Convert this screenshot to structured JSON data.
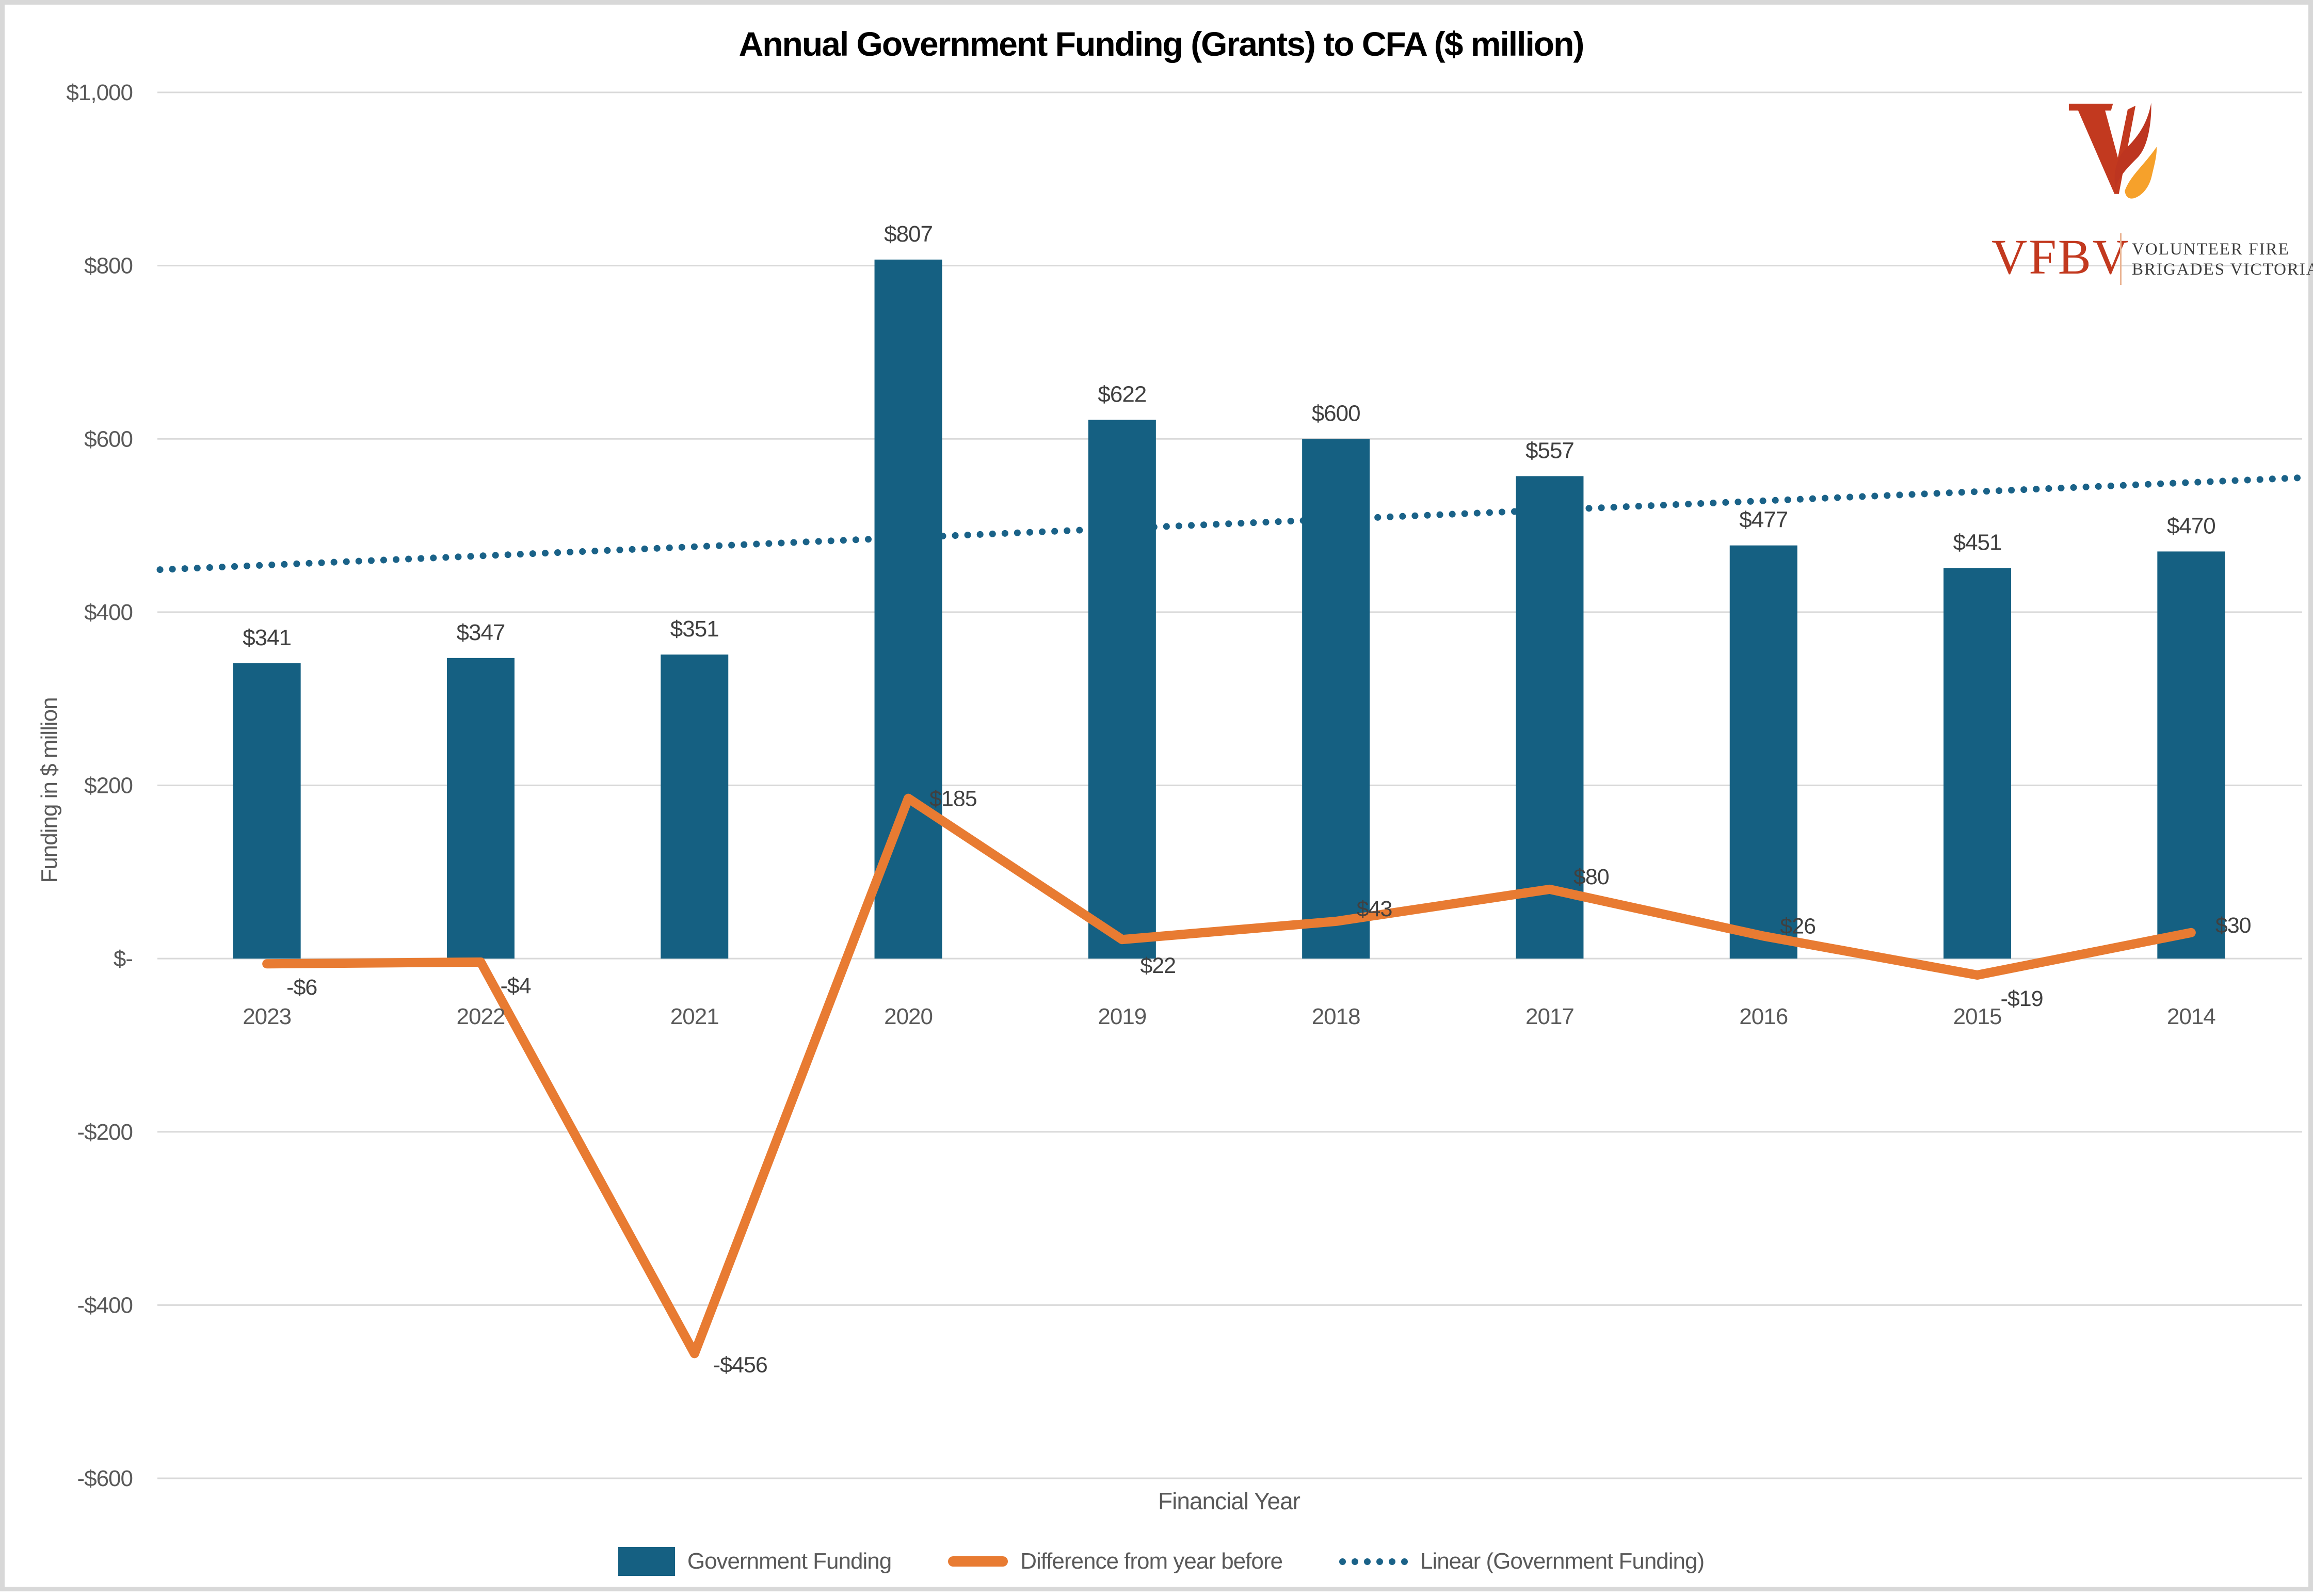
{
  "title": "Annual Government Funding (Grants) to CFA ($ million)",
  "logo": {
    "acronym": "VFBV",
    "org_line1": "VOLUNTEER FIRE",
    "org_line2": "BRIGADES VICTORIA",
    "colors": {
      "red": "#c2391f",
      "flame_red": "#bd3520",
      "flame_orange": "#f6a12b",
      "text_gray": "#3c3c3c",
      "divider": "#e9b392"
    }
  },
  "chart_data": {
    "type": "bar",
    "title": "Annual Government Funding (Grants) to CFA ($ million)",
    "categories": [
      "2023",
      "2022",
      "2021",
      "2020",
      "2019",
      "2018",
      "2017",
      "2016",
      "2015",
      "2014"
    ],
    "series": [
      {
        "name": "Government Funding",
        "type": "bar",
        "color": "#156082",
        "values": [
          341,
          347,
          351,
          807,
          622,
          600,
          557,
          477,
          451,
          470
        ],
        "labels": [
          "$341",
          "$347",
          "$351",
          "$807",
          "$622",
          "$600",
          "$557",
          "$477",
          "$451",
          "$470"
        ]
      },
      {
        "name": "Difference from year before",
        "type": "line",
        "color": "#e87b32",
        "values": [
          -6,
          -4,
          -456,
          185,
          22,
          43,
          80,
          26,
          -19,
          30
        ],
        "labels": [
          "-$6",
          "-$4",
          "-$456",
          "$185",
          "$22",
          "$43",
          "$80",
          "$26",
          "-$19",
          "$30"
        ]
      },
      {
        "name": "Linear (Government Funding)",
        "type": "trendline",
        "color": "#1a6288",
        "start_value": 449,
        "end_value": 555
      }
    ],
    "xlabel": "Financial Year",
    "ylabel": "Funding in $ million",
    "ylim": [
      -600,
      1000
    ],
    "ytick_step": 200,
    "ytick_labels": [
      "$1,000",
      "$800",
      "$600",
      "$400",
      "$200",
      "$-",
      "-$200",
      "-$400",
      "-$600"
    ],
    "grid": "horizontal",
    "legend_position": "bottom"
  },
  "colors": {
    "gridline": "#d9d9d9",
    "tick_text": "#595959",
    "data_label": "#404040",
    "background": "#ffffff",
    "frame_border": "#d8d8d8"
  }
}
